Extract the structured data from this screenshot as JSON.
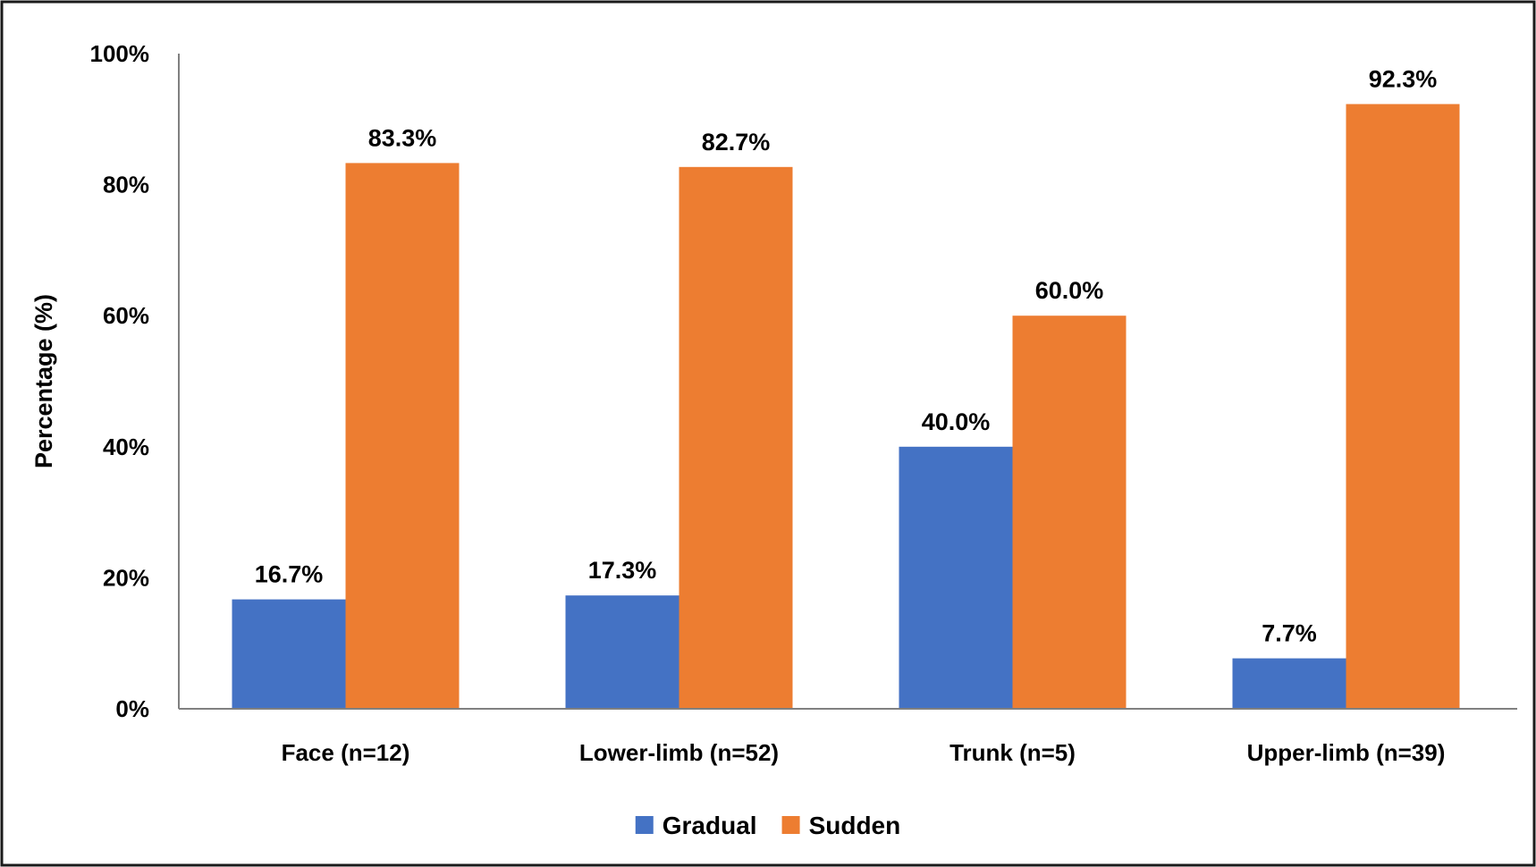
{
  "chart_data": {
    "type": "bar",
    "title": "",
    "xlabel": "",
    "ylabel": "Percentage (%)",
    "ylim": [
      0,
      100
    ],
    "yticks": [
      0,
      20,
      40,
      60,
      80,
      100
    ],
    "ytick_labels": [
      "0%",
      "20%",
      "40%",
      "60%",
      "80%",
      "100%"
    ],
    "grid": false,
    "legend_position": "bottom",
    "categories": [
      "Face (n=12)",
      "Lower-limb (n=52)",
      "Trunk (n=5)",
      "Upper-limb (n=39)"
    ],
    "series": [
      {
        "name": "Gradual",
        "color": "#4472C4",
        "values": [
          16.7,
          17.3,
          40.0,
          7.7
        ],
        "labels": [
          "16.7%",
          "17.3%",
          "40.0%",
          "7.7%"
        ]
      },
      {
        "name": "Sudden",
        "color": "#ED7D31",
        "values": [
          83.3,
          82.7,
          60.0,
          92.3
        ],
        "labels": [
          "83.3%",
          "82.7%",
          "60.0%",
          "92.3%"
        ]
      }
    ]
  }
}
